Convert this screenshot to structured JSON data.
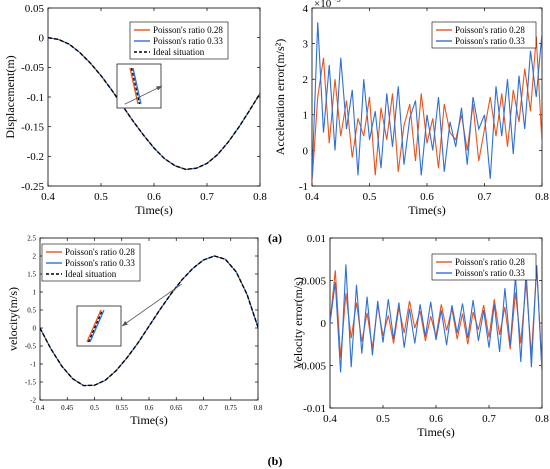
{
  "figure": {
    "label_a": "(a)",
    "label_b": "(b)",
    "colors": {
      "series_1": "#e8541e",
      "series_2": "#2f6fd6",
      "ideal": "#000000"
    }
  },
  "chart_data": [
    {
      "id": "a1",
      "type": "line",
      "xlabel": "Time(s)",
      "ylabel": "Displacement(m)",
      "xlim": [
        0.4,
        0.8
      ],
      "ylim": [
        -0.25,
        0.05
      ],
      "xticks": [
        0.4,
        0.5,
        0.6,
        0.7,
        0.8
      ],
      "xtick_labels": [
        "0.4",
        "0.5",
        "0.6",
        "0.7",
        "0.8"
      ],
      "yticks": [
        -0.25,
        -0.2,
        -0.15,
        -0.1,
        -0.05,
        0,
        0.05
      ],
      "ytick_labels": [
        "-0.25",
        "-0.2",
        "-0.15",
        "-0.1",
        "-0.05",
        "0",
        "0.05"
      ],
      "legend": [
        "Poisson's ratio 0.28",
        "Poisson's ratio 0.33",
        "Ideal situation"
      ],
      "legend_position": "top-right",
      "inset": true,
      "x": [
        0.4,
        0.42,
        0.44,
        0.46,
        0.48,
        0.5,
        0.52,
        0.54,
        0.56,
        0.58,
        0.6,
        0.62,
        0.64,
        0.66,
        0.68,
        0.7,
        0.72,
        0.74,
        0.76,
        0.78,
        0.8
      ],
      "series": [
        {
          "name": "Poisson's ratio 0.28",
          "values": [
            0,
            -0.003,
            -0.011,
            -0.025,
            -0.043,
            -0.064,
            -0.088,
            -0.114,
            -0.14,
            -0.164,
            -0.186,
            -0.204,
            -0.216,
            -0.222,
            -0.22,
            -0.212,
            -0.197,
            -0.176,
            -0.151,
            -0.123,
            -0.094
          ]
        },
        {
          "name": "Poisson's ratio 0.33",
          "values": [
            0,
            -0.003,
            -0.011,
            -0.025,
            -0.043,
            -0.064,
            -0.088,
            -0.114,
            -0.14,
            -0.164,
            -0.186,
            -0.204,
            -0.216,
            -0.222,
            -0.22,
            -0.212,
            -0.197,
            -0.176,
            -0.151,
            -0.123,
            -0.094
          ]
        },
        {
          "name": "Ideal situation",
          "values": [
            0,
            -0.003,
            -0.011,
            -0.025,
            -0.043,
            -0.064,
            -0.088,
            -0.114,
            -0.14,
            -0.164,
            -0.186,
            -0.204,
            -0.216,
            -0.222,
            -0.22,
            -0.212,
            -0.197,
            -0.176,
            -0.151,
            -0.123,
            -0.094
          ]
        }
      ]
    },
    {
      "id": "a2",
      "type": "line",
      "xlabel": "Time(s)",
      "ylabel": "Acceleration error(m/s²)",
      "exponent_label": "×10",
      "exponent_power": "-5",
      "xlim": [
        0.4,
        0.8
      ],
      "ylim": [
        -1,
        4
      ],
      "xticks": [
        0.4,
        0.5,
        0.6,
        0.7,
        0.8
      ],
      "xtick_labels": [
        "0.4",
        "0.5",
        "0.6",
        "0.7",
        "0.8"
      ],
      "yticks": [
        -1,
        0,
        1,
        2,
        3,
        4
      ],
      "ytick_labels": [
        "-1",
        "0",
        "1",
        "2",
        "3",
        "4"
      ],
      "legend": [
        "Poisson's ratio 0.28",
        "Poisson's ratio 0.33"
      ],
      "legend_position": "top-right",
      "x": [
        0.4,
        0.41,
        0.42,
        0.43,
        0.44,
        0.45,
        0.46,
        0.47,
        0.48,
        0.49,
        0.5,
        0.51,
        0.52,
        0.53,
        0.54,
        0.55,
        0.56,
        0.57,
        0.58,
        0.59,
        0.6,
        0.61,
        0.62,
        0.63,
        0.64,
        0.65,
        0.66,
        0.67,
        0.68,
        0.69,
        0.7,
        0.71,
        0.72,
        0.73,
        0.74,
        0.75,
        0.76,
        0.77,
        0.78,
        0.79,
        0.8
      ],
      "series": [
        {
          "name": "Poisson's ratio 0.28",
          "values": [
            -0.9,
            1.5,
            2.6,
            0.2,
            2.0,
            0.4,
            1.4,
            -0.2,
            0.9,
            0.4,
            1.5,
            -0.7,
            1.2,
            0.3,
            1.6,
            -0.6,
            0.7,
            1.3,
            -0.3,
            1.6,
            0.2,
            0.9,
            -0.5,
            1.3,
            0.5,
            0.3,
            1.0,
            0.0,
            1.3,
            -0.3,
            0.6,
            1.5,
            0.4,
            1.6,
            0.1,
            1.7,
            0.8,
            2.3,
            1.1,
            3.2,
            0.2
          ]
        },
        {
          "name": "Poisson's ratio 0.33",
          "values": [
            -0.8,
            3.6,
            0.5,
            2.4,
            0.0,
            2.6,
            0.6,
            1.7,
            -0.7,
            2.0,
            0.3,
            1.1,
            -0.5,
            1.6,
            0.1,
            1.8,
            -0.4,
            0.9,
            1.4,
            -0.7,
            1.0,
            0.0,
            1.5,
            -0.6,
            0.8,
            0.1,
            1.2,
            -0.4,
            1.5,
            0.6,
            1.0,
            -0.8,
            1.8,
            0.4,
            2.0,
            -0.1,
            2.1,
            0.6,
            2.8,
            1.5,
            3.3
          ]
        }
      ]
    },
    {
      "id": "b1",
      "type": "line",
      "xlabel": "Time(s)",
      "ylabel": "velocity(m/s)",
      "xlim": [
        0.4,
        0.8
      ],
      "ylim": [
        -2,
        2.5
      ],
      "xticks": [
        0.4,
        0.45,
        0.5,
        0.55,
        0.6,
        0.65,
        0.7,
        0.75,
        0.8
      ],
      "xtick_labels": [
        "0.4",
        "0.45",
        "0.5",
        "0.55",
        "0.6",
        "0.65",
        "0.7",
        "0.75",
        "0.8"
      ],
      "yticks": [
        -2,
        -1.5,
        -1,
        -0.5,
        0,
        0.5,
        1,
        1.5,
        2,
        2.5
      ],
      "ytick_labels": [
        "-2",
        "-1.5",
        "-1",
        "-0.5",
        "0",
        "0.5",
        "1",
        "1.5",
        "2",
        "2.5"
      ],
      "legend": [
        "Poisson's ratio 0.28",
        "Poisson's ratio 0.33",
        "Ideal situation"
      ],
      "legend_position": "top-left",
      "inset": true,
      "x": [
        0.4,
        0.42,
        0.44,
        0.46,
        0.48,
        0.5,
        0.52,
        0.54,
        0.56,
        0.58,
        0.6,
        0.62,
        0.64,
        0.66,
        0.68,
        0.7,
        0.72,
        0.74,
        0.76,
        0.78,
        0.8
      ],
      "series": [
        {
          "name": "Poisson's ratio 0.28",
          "values": [
            0,
            -0.58,
            -1.06,
            -1.41,
            -1.6,
            -1.59,
            -1.45,
            -1.18,
            -0.82,
            -0.41,
            0.05,
            0.51,
            0.94,
            1.33,
            1.65,
            1.89,
            2.0,
            1.91,
            1.56,
            0.93,
            0.02
          ]
        },
        {
          "name": "Poisson's ratio 0.33",
          "values": [
            0,
            -0.58,
            -1.06,
            -1.41,
            -1.6,
            -1.59,
            -1.45,
            -1.18,
            -0.82,
            -0.41,
            0.05,
            0.51,
            0.94,
            1.33,
            1.65,
            1.89,
            2.0,
            1.91,
            1.56,
            0.93,
            0.02
          ]
        },
        {
          "name": "Ideal situation",
          "values": [
            0,
            -0.58,
            -1.06,
            -1.41,
            -1.6,
            -1.59,
            -1.45,
            -1.18,
            -0.82,
            -0.41,
            0.05,
            0.51,
            0.94,
            1.33,
            1.65,
            1.89,
            2.0,
            1.91,
            1.56,
            0.93,
            0.02
          ]
        }
      ]
    },
    {
      "id": "b2",
      "type": "line",
      "xlabel": "Time(s)",
      "ylabel": "Velocity error(m/s)",
      "xlim": [
        0.4,
        0.8
      ],
      "ylim": [
        -0.01,
        0.01
      ],
      "xticks": [
        0.4,
        0.5,
        0.6,
        0.7,
        0.8
      ],
      "xtick_labels": [
        "0.4",
        "0.5",
        "0.6",
        "0.7",
        "0.8"
      ],
      "yticks": [
        -0.01,
        -0.005,
        0,
        0.005,
        0.01
      ],
      "ytick_labels": [
        "-0.01",
        "-0.005",
        "0",
        "0.005",
        "0.01"
      ],
      "legend": [
        "Poisson's ratio 0.28",
        "Poisson's ratio 0.33"
      ],
      "legend_position": "top-right",
      "x": [
        0.4,
        0.41,
        0.42,
        0.43,
        0.44,
        0.45,
        0.46,
        0.47,
        0.48,
        0.49,
        0.5,
        0.51,
        0.52,
        0.53,
        0.54,
        0.55,
        0.56,
        0.57,
        0.58,
        0.59,
        0.6,
        0.61,
        0.62,
        0.63,
        0.64,
        0.65,
        0.66,
        0.67,
        0.68,
        0.69,
        0.7,
        0.71,
        0.72,
        0.73,
        0.74,
        0.75,
        0.76,
        0.77,
        0.78,
        0.79,
        0.8
      ],
      "series": [
        {
          "name": "Poisson's ratio 0.28",
          "values": [
            0.0,
            0.0062,
            -0.0041,
            0.0035,
            -0.0018,
            0.0024,
            -0.0022,
            0.0012,
            -0.003,
            0.0021,
            -0.0015,
            0.0009,
            -0.0024,
            0.0018,
            -0.0012,
            0.0026,
            -0.0006,
            0.0014,
            -0.0021,
            0.0008,
            -0.0016,
            0.0022,
            -0.0009,
            0.0017,
            -0.0019,
            0.0011,
            -0.0025,
            0.0013,
            -0.0008,
            0.0021,
            -0.0017,
            0.0028,
            -0.0014,
            0.0019,
            -0.0031,
            0.0036,
            -0.0024,
            0.0048,
            -0.0038,
            0.0066,
            -0.0055
          ]
        },
        {
          "name": "Poisson's ratio 0.33",
          "values": [
            0.0,
            0.0048,
            -0.0058,
            0.0069,
            -0.0052,
            0.0045,
            -0.0036,
            0.0031,
            -0.0038,
            0.0026,
            -0.0023,
            0.0028,
            -0.0019,
            0.0024,
            -0.0029,
            0.0017,
            -0.0024,
            0.0022,
            -0.0016,
            0.0025,
            -0.002,
            0.0015,
            -0.0026,
            0.0021,
            -0.0012,
            0.0023,
            -0.0018,
            0.0027,
            -0.0021,
            0.0015,
            -0.0029,
            0.0022,
            -0.0034,
            0.0041,
            -0.0027,
            0.0055,
            -0.0046,
            0.0061,
            -0.0052,
            0.0068,
            -0.0059
          ]
        }
      ]
    }
  ]
}
